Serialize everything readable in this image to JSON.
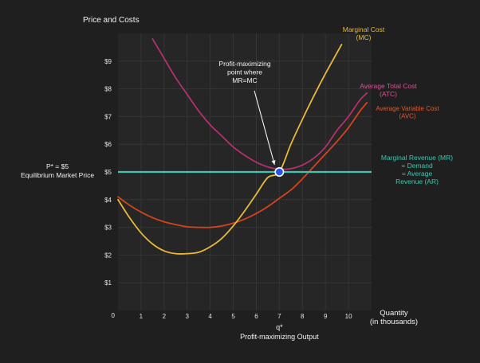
{
  "chart_data": {
    "type": "line",
    "ylabel": "Price and Costs",
    "xlabel_lines": [
      "Quantity",
      "(in thousands)"
    ],
    "xlim": [
      0,
      11
    ],
    "ylim": [
      0,
      10
    ],
    "grid": true,
    "x_ticks": [
      1,
      2,
      3,
      4,
      5,
      6,
      7,
      8,
      9,
      10
    ],
    "x_tick_labels": [
      "1",
      "2",
      "3",
      "4",
      "5",
      "6",
      "7",
      "8",
      "9",
      "10"
    ],
    "y_ticks": [
      1,
      2,
      3,
      4,
      5,
      6,
      7,
      8,
      9
    ],
    "y_tick_labels": [
      "$1",
      "$2",
      "$3",
      "$4",
      "$5",
      "$6",
      "$7",
      "$8",
      "$9"
    ],
    "origin_label": "0",
    "series": [
      {
        "key": "mc",
        "name_lines": [
          "Marginal Cost",
          "(MC)"
        ],
        "color": "#e8b83a",
        "points": [
          [
            0,
            4.0
          ],
          [
            0.5,
            3.35
          ],
          [
            1,
            2.8
          ],
          [
            1.5,
            2.4
          ],
          [
            2,
            2.15
          ],
          [
            2.5,
            2.05
          ],
          [
            3,
            2.05
          ],
          [
            3.5,
            2.1
          ],
          [
            4,
            2.3
          ],
          [
            4.5,
            2.6
          ],
          [
            5,
            3.05
          ],
          [
            5.5,
            3.6
          ],
          [
            6,
            4.2
          ],
          [
            6.5,
            4.8
          ],
          [
            7,
            5.0
          ],
          [
            7.5,
            6.0
          ],
          [
            8,
            6.9
          ],
          [
            8.5,
            7.75
          ],
          [
            9,
            8.55
          ],
          [
            9.5,
            9.3
          ],
          [
            9.7,
            9.6
          ]
        ]
      },
      {
        "key": "atc",
        "name_lines": [
          "Average Total Cost",
          "(ATC)"
        ],
        "color": "#b3306e",
        "points": [
          [
            1.5,
            9.8
          ],
          [
            2,
            9.1
          ],
          [
            2.5,
            8.4
          ],
          [
            3,
            7.8
          ],
          [
            3.5,
            7.2
          ],
          [
            4,
            6.7
          ],
          [
            4.5,
            6.3
          ],
          [
            5,
            5.9
          ],
          [
            5.5,
            5.6
          ],
          [
            6,
            5.35
          ],
          [
            6.5,
            5.18
          ],
          [
            7,
            5.1
          ],
          [
            7.5,
            5.12
          ],
          [
            8,
            5.25
          ],
          [
            8.5,
            5.5
          ],
          [
            9,
            5.9
          ],
          [
            9.5,
            6.5
          ],
          [
            10,
            7.0
          ],
          [
            10.5,
            7.6
          ],
          [
            10.8,
            7.85
          ]
        ]
      },
      {
        "key": "avc",
        "name_lines": [
          "Average Variable Cost",
          "(AVC)"
        ],
        "color": "#d4431e",
        "points": [
          [
            0,
            4.1
          ],
          [
            0.5,
            3.8
          ],
          [
            1,
            3.55
          ],
          [
            1.5,
            3.35
          ],
          [
            2,
            3.2
          ],
          [
            2.5,
            3.1
          ],
          [
            3,
            3.02
          ],
          [
            3.5,
            3.0
          ],
          [
            4,
            3.0
          ],
          [
            4.5,
            3.05
          ],
          [
            5,
            3.15
          ],
          [
            5.5,
            3.3
          ],
          [
            6,
            3.5
          ],
          [
            6.5,
            3.75
          ],
          [
            7,
            4.05
          ],
          [
            7.5,
            4.35
          ],
          [
            8,
            4.75
          ],
          [
            8.5,
            5.2
          ],
          [
            9,
            5.65
          ],
          [
            9.5,
            6.1
          ],
          [
            10,
            6.6
          ],
          [
            10.5,
            7.2
          ],
          [
            10.8,
            7.5
          ]
        ]
      },
      {
        "key": "mr",
        "name_lines": [
          "Marginal Revenue  (MR)",
          "= Demand",
          "= Average",
          "Revenue (AR)"
        ],
        "color": "#3ec7b0",
        "points": [
          [
            0,
            5.0
          ],
          [
            11,
            5.0
          ]
        ]
      }
    ],
    "price_label_lines": [
      "P* = $5",
      "Equilibrium Market Price"
    ],
    "equilibrium": {
      "x": 7,
      "y": 5
    },
    "q_label_lines": [
      "q*",
      "Profit-maximizing Output"
    ],
    "annotation_lines": [
      "Profit-maximizing",
      "point where",
      "MR=MC"
    ]
  }
}
